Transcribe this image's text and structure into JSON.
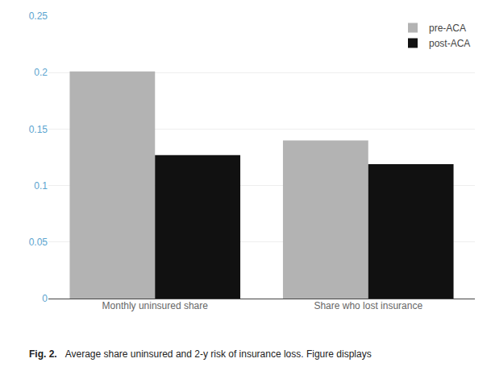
{
  "chart_data": {
    "type": "bar",
    "categories": [
      "Monthly uninsured share",
      "Share who lost insurance"
    ],
    "series": [
      {
        "name": "pre-ACA",
        "color": "#b3b3b3",
        "values": [
          0.201,
          0.14
        ]
      },
      {
        "name": "post-ACA",
        "color": "#111111",
        "values": [
          0.127,
          0.119
        ]
      }
    ],
    "ylim": [
      0,
      0.25
    ],
    "yticks": [
      0,
      0.05,
      0.1,
      0.15,
      0.2,
      0.25
    ],
    "grid": true,
    "legend": "upper right",
    "annotations": [
      "Fig. 2.",
      "Average share uninsured and 2-y risk of insurance loss. Figure displays"
    ]
  }
}
